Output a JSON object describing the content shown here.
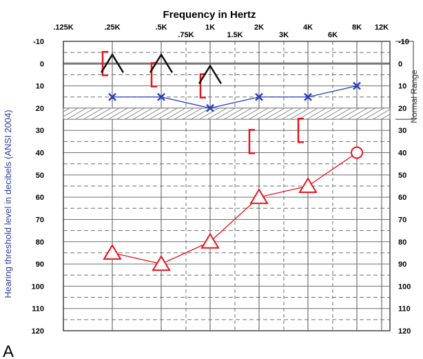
{
  "panel_label": "A",
  "chart_data": {
    "type": "line",
    "title": "Frequency in Hertz",
    "ylabel": "Hearing threshold level in decibels (ANSI 2004)",
    "right_label": "Normal Range",
    "y_reversed": true,
    "ylim": [
      -10,
      120
    ],
    "grid": true,
    "x_ticks_upper": [
      ".125K",
      ".25K",
      ".5K",
      "1K",
      "2K",
      "4K",
      "8K",
      "12K"
    ],
    "x_ticks_lower": [
      ".75K",
      "1.5K",
      "3K",
      "6K"
    ],
    "y_ticks": [
      "-10",
      "0",
      "10",
      "20",
      "30",
      "40",
      "50",
      "60",
      "70",
      "80",
      "90",
      "100",
      "110",
      "120"
    ],
    "normal_range": [
      20,
      25
    ],
    "colors": {
      "left": "#e8121b",
      "right": "#2a3fbf",
      "bone": "#111111",
      "grid": "#6e6e6e",
      "hatch": "#8a8a8a"
    },
    "series": [
      {
        "symbol": "triangle",
        "color": "#e8121b",
        "points": [
          {
            "freq": ".25K",
            "db": 85
          },
          {
            "freq": ".5K",
            "db": 90
          },
          {
            "freq": "1K",
            "db": 80
          },
          {
            "freq": "2K",
            "db": 60
          },
          {
            "freq": "4K",
            "db": 55
          },
          {
            "freq": "8K",
            "db": 40,
            "symbol": "circle"
          }
        ]
      },
      {
        "symbol": "x",
        "color": "#2a3fbf",
        "points": [
          {
            "freq": ".25K",
            "db": 15
          },
          {
            "freq": ".5K",
            "db": 15
          },
          {
            "freq": "1K",
            "db": 20
          },
          {
            "freq": "2K",
            "db": 15
          },
          {
            "freq": "4K",
            "db": 15
          },
          {
            "freq": "8K",
            "db": 10
          }
        ]
      },
      {
        "symbol": "masked-bone-bracket",
        "color": "#e8121b",
        "points": [
          {
            "freq": ".25K",
            "db": 0
          },
          {
            "freq": ".5K",
            "db": 5
          },
          {
            "freq": "1K",
            "db": 10
          },
          {
            "freq": "2K",
            "db": 35
          },
          {
            "freq": "4K",
            "db": 30
          }
        ]
      },
      {
        "symbol": "unmasked-bone-caret",
        "color": "#111111",
        "points": [
          {
            "freq": ".25K",
            "db": 0
          },
          {
            "freq": ".5K",
            "db": 0
          },
          {
            "freq": "1K",
            "db": 5
          }
        ]
      }
    ]
  }
}
